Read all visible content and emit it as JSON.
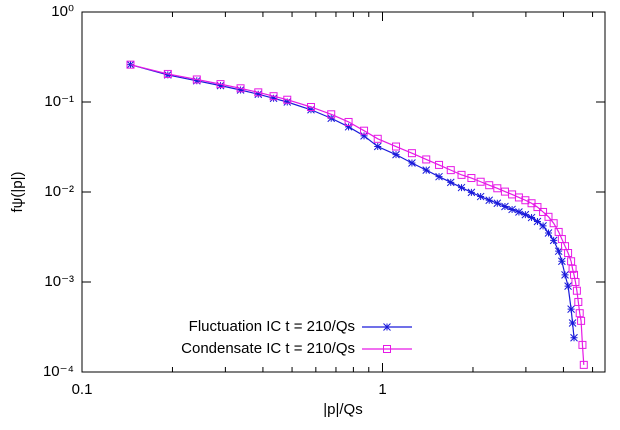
{
  "chart_data": {
    "type": "line",
    "xlabel": "|p|/Qs",
    "ylabel": "fψ(|p|)",
    "log_x": true,
    "log_y": true,
    "legend": "lower-left",
    "xlim": [
      0.1,
      5.5
    ],
    "ylim": [
      0.0001,
      1
    ],
    "xticks": [
      0.1,
      1
    ],
    "xminorticks": [
      0.2,
      0.3,
      0.4,
      0.5,
      0.6,
      0.7,
      0.8,
      0.9,
      2,
      3,
      4,
      5
    ],
    "yticks": [
      {
        "value": 0.0001,
        "label": "10⁻⁴"
      },
      {
        "value": 0.001,
        "label": "10⁻³"
      },
      {
        "value": 0.01,
        "label": "10⁻²"
      },
      {
        "value": 0.1,
        "label": "10⁻¹"
      },
      {
        "value": 1,
        "label": "10⁰"
      }
    ],
    "x": [
      0.145,
      0.193,
      0.241,
      0.289,
      0.337,
      0.386,
      0.434,
      0.482,
      0.578,
      0.675,
      0.771,
      0.868,
      0.964,
      1.109,
      1.253,
      1.398,
      1.542,
      1.687,
      1.832,
      1.976,
      2.121,
      2.265,
      2.41,
      2.555,
      2.699,
      2.844,
      2.988,
      3.133,
      3.278,
      3.422,
      3.567,
      3.711,
      3.856,
      3.952,
      4.049,
      4.145,
      4.242,
      4.29,
      4.338,
      4.386,
      4.434,
      4.483,
      4.531,
      4.579,
      4.627,
      4.675
    ],
    "series": [
      {
        "name": "Fluctuation IC t = 210/Qs",
        "color": "#1a1adb",
        "marker": "star",
        "values": [
          0.26,
          0.2,
          0.172,
          0.152,
          0.136,
          0.122,
          0.11,
          0.1,
          0.082,
          0.066,
          0.053,
          0.042,
          0.032,
          0.026,
          0.021,
          0.0175,
          0.0148,
          0.0128,
          0.0112,
          0.0099,
          0.0089,
          0.0081,
          0.0075,
          0.0069,
          0.0064,
          0.006,
          0.0056,
          0.0052,
          0.0047,
          0.0042,
          0.0035,
          0.0029,
          0.0022,
          0.0017,
          0.0012,
          0.0009,
          0.0005,
          0.00035,
          0.00024,
          null,
          null,
          null,
          null,
          null,
          null,
          null
        ]
      },
      {
        "name": "Condensate IC t = 210/Qs",
        "color": "#e619e6",
        "marker": "square",
        "values": [
          0.26,
          0.205,
          0.178,
          0.158,
          0.142,
          0.128,
          0.116,
          0.106,
          0.088,
          0.073,
          0.06,
          0.048,
          0.039,
          0.032,
          0.027,
          0.023,
          0.02,
          0.0175,
          0.0155,
          0.0143,
          0.013,
          0.0119,
          0.011,
          0.0101,
          0.0094,
          0.0087,
          0.0081,
          0.0075,
          0.0068,
          0.006,
          0.0053,
          0.0045,
          0.0036,
          0.003,
          0.0025,
          0.0021,
          0.0017,
          0.0014,
          0.0012,
          0.001,
          0.0008,
          0.0006,
          0.00045,
          0.00037,
          0.0002,
          0.00012
        ]
      }
    ]
  }
}
